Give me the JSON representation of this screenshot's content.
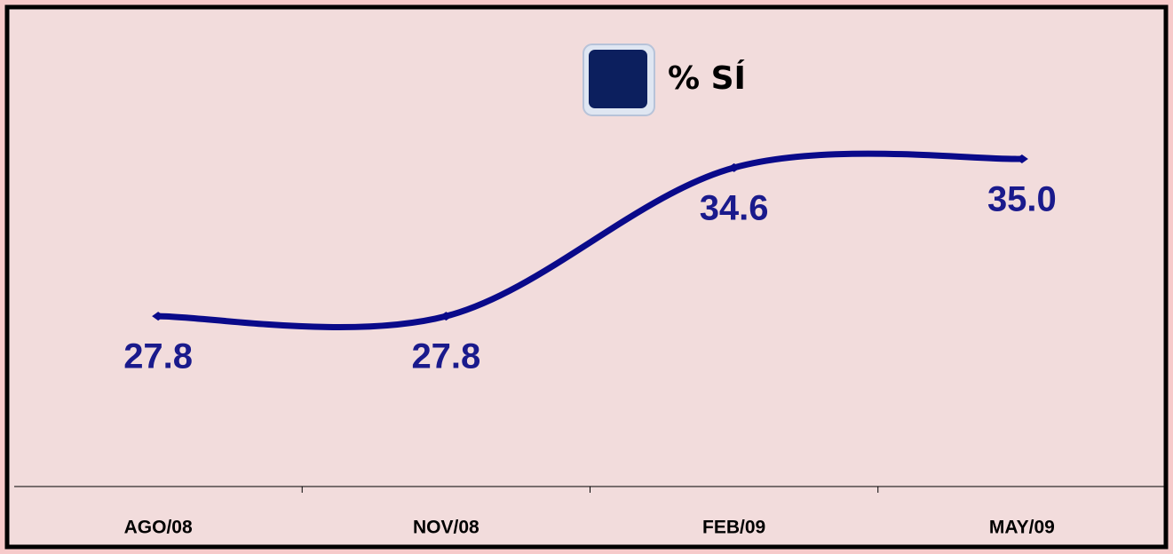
{
  "chart_data": {
    "type": "line",
    "categories": [
      "AGO/08",
      "NOV/08",
      "FEB/09",
      "MAY/09"
    ],
    "series": [
      {
        "name": "% SÍ",
        "color": "#0a0a8a",
        "legend_color": "#0c1f5e",
        "values": [
          27.8,
          27.8,
          34.6,
          35.0
        ],
        "value_labels": [
          "27.8",
          "27.8",
          "34.6",
          "35.0"
        ]
      }
    ],
    "ylim": [
      20,
      40
    ],
    "smooth": true,
    "legend": "top"
  }
}
